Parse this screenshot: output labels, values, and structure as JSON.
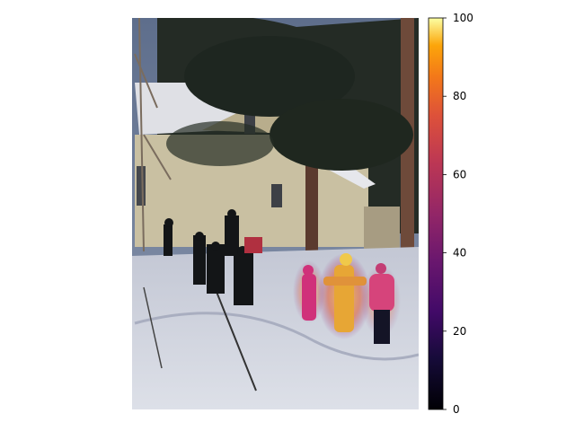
{
  "figure": {
    "image_name": "snow-scene-with-people-and-house",
    "overlay_colormap": "inferno",
    "overlay_targets": [
      "child-in-pink-left",
      "child-in-yellow-center",
      "child-in-pink-right"
    ]
  },
  "colorbar": {
    "colormap": "inferno",
    "ticks": [
      "0",
      "20",
      "40",
      "60",
      "80",
      "100"
    ],
    "range": [
      0,
      100
    ]
  }
}
